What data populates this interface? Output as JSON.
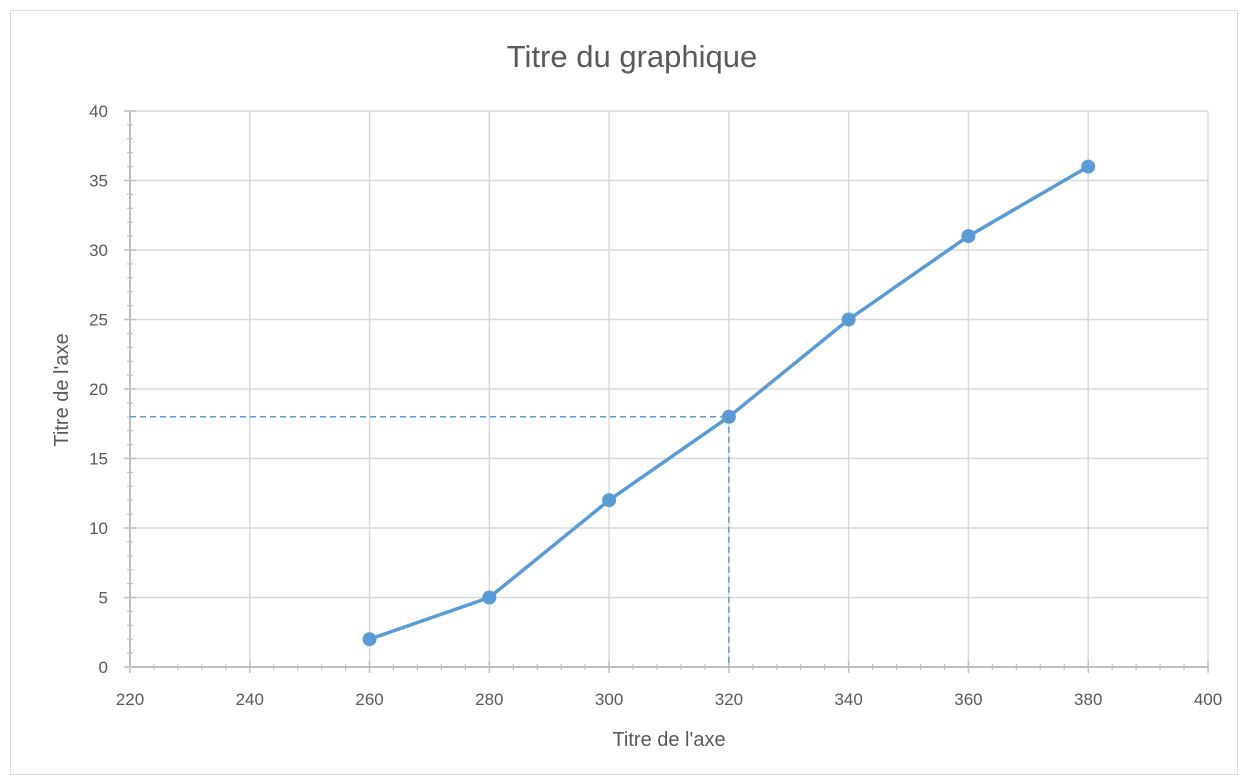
{
  "chart_data": {
    "type": "line",
    "title": "Titre du graphique",
    "xlabel": "Titre de l'axe",
    "ylabel": "Titre de l'axe",
    "xlim": [
      220,
      400
    ],
    "ylim": [
      0,
      40
    ],
    "x_ticks": [
      220,
      240,
      260,
      280,
      300,
      320,
      340,
      360,
      380,
      400
    ],
    "y_ticks": [
      0,
      5,
      10,
      15,
      20,
      25,
      30,
      35,
      40
    ],
    "grid": true,
    "series": [
      {
        "x": [
          260,
          280,
          300,
          320,
          340,
          360,
          380
        ],
        "y": [
          2,
          5,
          12,
          18,
          25,
          31,
          36
        ],
        "color": "#5b9bd5",
        "markers": "circle"
      }
    ],
    "annotations": [
      {
        "type": "dashed-guide",
        "x": 320,
        "y": 18,
        "color": "#5b9bd5"
      }
    ],
    "colors": {
      "grid": "#d9d9d9",
      "axis": "#bfbfbf",
      "text": "#595959"
    }
  }
}
